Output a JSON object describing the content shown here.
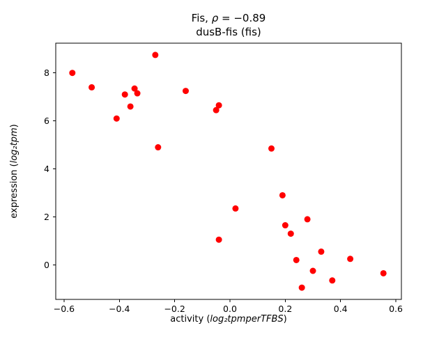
{
  "chart_data": {
    "type": "scatter",
    "title_parts": {
      "prefix": "Fis, ",
      "rho": "ρ",
      "suffix": " = −0.89"
    },
    "subtitle": "dusB-fis (fis)",
    "xlabel_parts": {
      "prefix": "activity (",
      "math": "log₂tpmperTFBS",
      "suffix": ")"
    },
    "ylabel_parts": {
      "prefix": "expression (",
      "math": "log₂tpm",
      "suffix": ")"
    },
    "marker_color": "#ff0000",
    "marker_radius": 4.5,
    "grid": false,
    "legend": "none",
    "xlim": [
      -0.63,
      0.62
    ],
    "ylim": [
      -1.44,
      9.24
    ],
    "xticks": [
      {
        "v": -0.6,
        "label": "−0.6"
      },
      {
        "v": -0.4,
        "label": "−0.4"
      },
      {
        "v": -0.2,
        "label": "−0.2"
      },
      {
        "v": 0.0,
        "label": "0.0"
      },
      {
        "v": 0.2,
        "label": "0.2"
      },
      {
        "v": 0.4,
        "label": "0.4"
      },
      {
        "v": 0.6,
        "label": "0.6"
      }
    ],
    "yticks": [
      {
        "v": 0,
        "label": "0"
      },
      {
        "v": 2,
        "label": "2"
      },
      {
        "v": 4,
        "label": "4"
      },
      {
        "v": 6,
        "label": "6"
      },
      {
        "v": 8,
        "label": "8"
      }
    ],
    "points": [
      [
        -0.57,
        8.0
      ],
      [
        -0.5,
        7.4
      ],
      [
        -0.41,
        6.1
      ],
      [
        -0.38,
        7.1
      ],
      [
        -0.36,
        6.6
      ],
      [
        -0.345,
        7.35
      ],
      [
        -0.335,
        7.15
      ],
      [
        -0.27,
        8.75
      ],
      [
        -0.26,
        4.9
      ],
      [
        -0.16,
        7.25
      ],
      [
        -0.05,
        6.45
      ],
      [
        -0.04,
        6.65
      ],
      [
        -0.04,
        1.05
      ],
      [
        0.02,
        2.35
      ],
      [
        0.15,
        4.85
      ],
      [
        0.19,
        2.9
      ],
      [
        0.2,
        1.65
      ],
      [
        0.22,
        1.3
      ],
      [
        0.24,
        0.2
      ],
      [
        0.26,
        -0.95
      ],
      [
        0.28,
        1.9
      ],
      [
        0.3,
        -0.25
      ],
      [
        0.33,
        0.55
      ],
      [
        0.37,
        -0.65
      ],
      [
        0.435,
        0.25
      ],
      [
        0.555,
        -0.35
      ]
    ]
  }
}
